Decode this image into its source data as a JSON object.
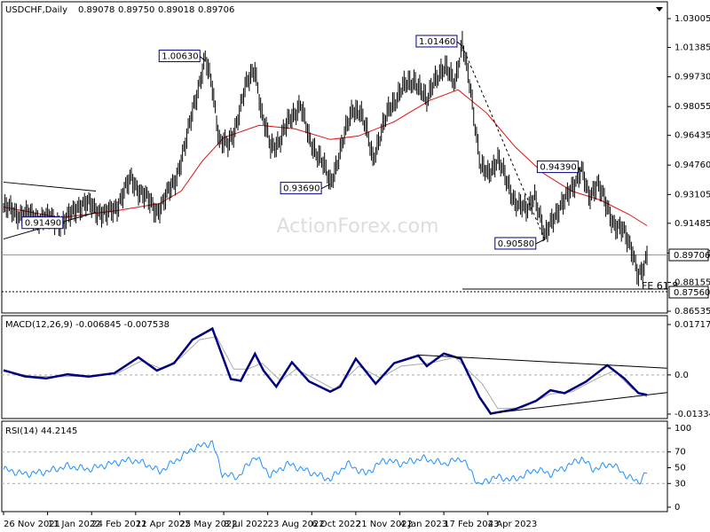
{
  "chart_data": {
    "type": "line",
    "title": "USDCHF,Daily",
    "ohlc": {
      "open": "0.89078",
      "high": "0.89750",
      "low": "0.89018",
      "close": "0.89706"
    },
    "watermark": "ActionForex.com",
    "x_labels": [
      "26 Nov 2021",
      "11 Jan 2022",
      "24 Feb 2022",
      "11 Apr 2022",
      "25 May 2022",
      "8 Jul 2022",
      "23 Aug 2022",
      "6 Oct 2022",
      "21 Nov 2022",
      "4 Jan 2023",
      "17 Feb 2023",
      "4 Apr 2023"
    ],
    "colors": {
      "price": "#000000",
      "moving_average": "#dd1111",
      "macd": "#000080",
      "macd_signal": "#aaaaaa",
      "rsi": "#1e90ff",
      "label_border": "#000080",
      "grid": "#000000"
    },
    "price_pane": {
      "y_ticks": [
        "1.03005",
        "1.01385",
        "0.99730",
        "0.98055",
        "0.96435",
        "0.94760",
        "0.93105",
        "0.91485",
        "0.89810",
        "0.88155",
        "0.86535"
      ],
      "y_tick_values": [
        1.03005,
        1.01385,
        0.9973,
        0.98055,
        0.96435,
        0.9476,
        0.93105,
        0.91485,
        0.8981,
        0.88155,
        0.86535
      ],
      "ylim": [
        0.8654,
        1.0355
      ],
      "current_price": 0.89706,
      "current_price_label": "0.89706",
      "target_level": 0.8756,
      "target_label": "0.87560",
      "target_annotation": "FE 61.8",
      "levels": [
        {
          "label": "1.00630",
          "value": 1.0063,
          "day": 142
        },
        {
          "label": "1.01460",
          "value": 1.0146,
          "day": 323
        },
        {
          "label": "0.93690",
          "value": 0.9369,
          "day": 230
        },
        {
          "label": "0.90580",
          "value": 0.9058,
          "day": 381
        },
        {
          "label": "0.94390",
          "value": 0.9439,
          "day": 407
        },
        {
          "label": "0.91490",
          "value": 0.9149,
          "day": 43
        }
      ],
      "price_points": [
        {
          "d": 0,
          "v": 0.9235
        },
        {
          "d": 12,
          "v": 0.92
        },
        {
          "d": 25,
          "v": 0.918
        },
        {
          "d": 35,
          "v": 0.917
        },
        {
          "d": 43,
          "v": 0.9149
        },
        {
          "d": 52,
          "v": 0.925
        },
        {
          "d": 62,
          "v": 0.925
        },
        {
          "d": 72,
          "v": 0.919
        },
        {
          "d": 80,
          "v": 0.925
        },
        {
          "d": 90,
          "v": 0.94
        },
        {
          "d": 98,
          "v": 0.931
        },
        {
          "d": 108,
          "v": 0.922
        },
        {
          "d": 113,
          "v": 0.927
        },
        {
          "d": 121,
          "v": 0.94
        },
        {
          "d": 128,
          "v": 0.958
        },
        {
          "d": 134,
          "v": 0.982
        },
        {
          "d": 142,
          "v": 1.0063
        },
        {
          "d": 147,
          "v": 0.992
        },
        {
          "d": 152,
          "v": 0.962
        },
        {
          "d": 158,
          "v": 0.958
        },
        {
          "d": 162,
          "v": 0.966
        },
        {
          "d": 170,
          "v": 0.99
        },
        {
          "d": 177,
          "v": 1.003
        },
        {
          "d": 182,
          "v": 0.975
        },
        {
          "d": 188,
          "v": 0.958
        },
        {
          "d": 195,
          "v": 0.962
        },
        {
          "d": 202,
          "v": 0.974
        },
        {
          "d": 209,
          "v": 0.982
        },
        {
          "d": 215,
          "v": 0.962
        },
        {
          "d": 223,
          "v": 0.952
        },
        {
          "d": 230,
          "v": 0.9369
        },
        {
          "d": 238,
          "v": 0.958
        },
        {
          "d": 246,
          "v": 0.98
        },
        {
          "d": 251,
          "v": 0.978
        },
        {
          "d": 256,
          "v": 0.965
        },
        {
          "d": 260,
          "v": 0.952
        },
        {
          "d": 267,
          "v": 0.968
        },
        {
          "d": 272,
          "v": 0.98
        },
        {
          "d": 280,
          "v": 0.99
        },
        {
          "d": 290,
          "v": 0.996
        },
        {
          "d": 298,
          "v": 0.982
        },
        {
          "d": 303,
          "v": 0.997
        },
        {
          "d": 312,
          "v": 1.001
        },
        {
          "d": 318,
          "v": 0.996
        },
        {
          "d": 323,
          "v": 1.0146
        },
        {
          "d": 329,
          "v": 0.99
        },
        {
          "d": 336,
          "v": 0.946
        },
        {
          "d": 341,
          "v": 0.942
        },
        {
          "d": 348,
          "v": 0.952
        },
        {
          "d": 354,
          "v": 0.938
        },
        {
          "d": 360,
          "v": 0.928
        },
        {
          "d": 368,
          "v": 0.921
        },
        {
          "d": 374,
          "v": 0.932
        },
        {
          "d": 381,
          "v": 0.9058
        },
        {
          "d": 386,
          "v": 0.918
        },
        {
          "d": 394,
          "v": 0.925
        },
        {
          "d": 400,
          "v": 0.936
        },
        {
          "d": 407,
          "v": 0.9439
        },
        {
          "d": 412,
          "v": 0.93
        },
        {
          "d": 418,
          "v": 0.938
        },
        {
          "d": 424,
          "v": 0.925
        },
        {
          "d": 430,
          "v": 0.915
        },
        {
          "d": 436,
          "v": 0.91
        },
        {
          "d": 443,
          "v": 0.9
        },
        {
          "d": 447,
          "v": 0.885
        },
        {
          "d": 451,
          "v": 0.8875
        },
        {
          "d": 453,
          "v": 0.897
        }
      ],
      "moving_average_points": [
        {
          "d": 0,
          "v": 0.924
        },
        {
          "d": 40,
          "v": 0.918
        },
        {
          "d": 80,
          "v": 0.922
        },
        {
          "d": 110,
          "v": 0.926
        },
        {
          "d": 125,
          "v": 0.933
        },
        {
          "d": 140,
          "v": 0.95
        },
        {
          "d": 155,
          "v": 0.963
        },
        {
          "d": 180,
          "v": 0.97
        },
        {
          "d": 205,
          "v": 0.968
        },
        {
          "d": 230,
          "v": 0.962
        },
        {
          "d": 250,
          "v": 0.964
        },
        {
          "d": 275,
          "v": 0.972
        },
        {
          "d": 300,
          "v": 0.984
        },
        {
          "d": 320,
          "v": 0.99
        },
        {
          "d": 340,
          "v": 0.977
        },
        {
          "d": 360,
          "v": 0.958
        },
        {
          "d": 380,
          "v": 0.943
        },
        {
          "d": 400,
          "v": 0.933
        },
        {
          "d": 420,
          "v": 0.928
        },
        {
          "d": 440,
          "v": 0.92
        },
        {
          "d": 453,
          "v": 0.9135
        }
      ],
      "trend_lines": [
        {
          "from": {
            "d": 0,
            "v": 0.938
          },
          "to": {
            "d": 65,
            "v": 0.933
          },
          "style": "solid"
        },
        {
          "from": {
            "d": 0,
            "v": 0.906
          },
          "to": {
            "d": 65,
            "v": 0.921
          },
          "style": "solid"
        },
        {
          "from": {
            "d": 323,
            "v": 1.0146
          },
          "to": {
            "d": 381,
            "v": 0.9058
          },
          "style": "dashed"
        }
      ]
    },
    "macd_pane": {
      "label": "MACD(12,26,9) -0.006845 -0.007538",
      "y_ticks": [
        "0.017176",
        "0.0",
        "-0.01334"
      ],
      "y_tick_values": [
        0.017176,
        0.0,
        -0.01334
      ],
      "ylim": [
        -0.01334,
        0.017176
      ],
      "macd_points": [
        {
          "d": 0,
          "v": 0.0016
        },
        {
          "d": 15,
          "v": -0.0005
        },
        {
          "d": 30,
          "v": -0.0012
        },
        {
          "d": 45,
          "v": 0.0002
        },
        {
          "d": 60,
          "v": -0.0006
        },
        {
          "d": 78,
          "v": 0.0006
        },
        {
          "d": 95,
          "v": 0.006
        },
        {
          "d": 108,
          "v": 0.0015
        },
        {
          "d": 120,
          "v": 0.004
        },
        {
          "d": 133,
          "v": 0.012
        },
        {
          "d": 147,
          "v": 0.0158
        },
        {
          "d": 160,
          "v": -0.0014
        },
        {
          "d": 167,
          "v": -0.002
        },
        {
          "d": 177,
          "v": 0.0072
        },
        {
          "d": 183,
          "v": 0.0015
        },
        {
          "d": 192,
          "v": -0.004
        },
        {
          "d": 203,
          "v": 0.0043
        },
        {
          "d": 215,
          "v": -0.0022
        },
        {
          "d": 230,
          "v": -0.0057
        },
        {
          "d": 237,
          "v": -0.004
        },
        {
          "d": 248,
          "v": 0.0055
        },
        {
          "d": 262,
          "v": -0.003
        },
        {
          "d": 275,
          "v": 0.004
        },
        {
          "d": 292,
          "v": 0.0066
        },
        {
          "d": 298,
          "v": 0.003
        },
        {
          "d": 310,
          "v": 0.0073
        },
        {
          "d": 322,
          "v": 0.0055
        },
        {
          "d": 335,
          "v": -0.0075
        },
        {
          "d": 343,
          "v": -0.0132
        },
        {
          "d": 360,
          "v": -0.0117
        },
        {
          "d": 375,
          "v": -0.0088
        },
        {
          "d": 385,
          "v": -0.0052
        },
        {
          "d": 395,
          "v": -0.0062
        },
        {
          "d": 410,
          "v": -0.0023
        },
        {
          "d": 425,
          "v": 0.0033
        },
        {
          "d": 437,
          "v": -0.0012
        },
        {
          "d": 447,
          "v": -0.0062
        },
        {
          "d": 453,
          "v": -0.0068
        }
      ],
      "signal_points": [
        {
          "d": 0,
          "v": 0.0012
        },
        {
          "d": 20,
          "v": -0.0004
        },
        {
          "d": 40,
          "v": -0.0006
        },
        {
          "d": 60,
          "v": -0.0004
        },
        {
          "d": 80,
          "v": 0.0005
        },
        {
          "d": 97,
          "v": 0.0048
        },
        {
          "d": 112,
          "v": 0.002
        },
        {
          "d": 125,
          "v": 0.006
        },
        {
          "d": 138,
          "v": 0.012
        },
        {
          "d": 150,
          "v": 0.013
        },
        {
          "d": 162,
          "v": 0.002
        },
        {
          "d": 172,
          "v": 0.002
        },
        {
          "d": 182,
          "v": 0.004
        },
        {
          "d": 195,
          "v": -0.002
        },
        {
          "d": 206,
          "v": 0.002
        },
        {
          "d": 218,
          "v": -0.001
        },
        {
          "d": 233,
          "v": -0.005
        },
        {
          "d": 250,
          "v": 0.003
        },
        {
          "d": 265,
          "v": -0.001
        },
        {
          "d": 280,
          "v": 0.003
        },
        {
          "d": 300,
          "v": 0.004
        },
        {
          "d": 318,
          "v": 0.006
        },
        {
          "d": 337,
          "v": -0.003
        },
        {
          "d": 348,
          "v": -0.0115
        },
        {
          "d": 365,
          "v": -0.0112
        },
        {
          "d": 385,
          "v": -0.0065
        },
        {
          "d": 400,
          "v": -0.0058
        },
        {
          "d": 418,
          "v": -0.0012
        },
        {
          "d": 430,
          "v": 0.0015
        },
        {
          "d": 442,
          "v": -0.0045
        },
        {
          "d": 453,
          "v": -0.0075
        }
      ],
      "trend_lines": [
        {
          "from": {
            "d": 292,
            "v": 0.0068
          },
          "to": {
            "d": 467,
            "v": 0.0023
          }
        },
        {
          "from": {
            "d": 343,
            "v": -0.0131
          },
          "to": {
            "d": 467,
            "v": -0.006
          }
        }
      ]
    },
    "rsi_pane": {
      "label": "RSI(14) 44.2145",
      "y_ticks": [
        "100",
        "70",
        "50",
        "30",
        "0"
      ],
      "y_tick_values": [
        100,
        70,
        50,
        30,
        0
      ],
      "ylim": [
        0,
        100
      ],
      "reference_levels": [
        70,
        30
      ],
      "rsi_points": [
        {
          "d": 0,
          "v": 48
        },
        {
          "d": 15,
          "v": 42
        },
        {
          "d": 30,
          "v": 45
        },
        {
          "d": 45,
          "v": 52
        },
        {
          "d": 60,
          "v": 48
        },
        {
          "d": 75,
          "v": 55
        },
        {
          "d": 90,
          "v": 60
        },
        {
          "d": 100,
          "v": 55
        },
        {
          "d": 110,
          "v": 45
        },
        {
          "d": 122,
          "v": 60
        },
        {
          "d": 134,
          "v": 75
        },
        {
          "d": 147,
          "v": 82
        },
        {
          "d": 154,
          "v": 42
        },
        {
          "d": 165,
          "v": 38
        },
        {
          "d": 177,
          "v": 65
        },
        {
          "d": 188,
          "v": 40
        },
        {
          "d": 200,
          "v": 55
        },
        {
          "d": 215,
          "v": 45
        },
        {
          "d": 230,
          "v": 35
        },
        {
          "d": 242,
          "v": 55
        },
        {
          "d": 255,
          "v": 42
        },
        {
          "d": 268,
          "v": 60
        },
        {
          "d": 280,
          "v": 55
        },
        {
          "d": 295,
          "v": 62
        },
        {
          "d": 310,
          "v": 55
        },
        {
          "d": 323,
          "v": 62
        },
        {
          "d": 335,
          "v": 28
        },
        {
          "d": 345,
          "v": 38
        },
        {
          "d": 360,
          "v": 35
        },
        {
          "d": 375,
          "v": 48
        },
        {
          "d": 385,
          "v": 42
        },
        {
          "d": 397,
          "v": 52
        },
        {
          "d": 407,
          "v": 62
        },
        {
          "d": 415,
          "v": 48
        },
        {
          "d": 428,
          "v": 55
        },
        {
          "d": 440,
          "v": 38
        },
        {
          "d": 447,
          "v": 32
        },
        {
          "d": 453,
          "v": 44
        }
      ]
    }
  }
}
